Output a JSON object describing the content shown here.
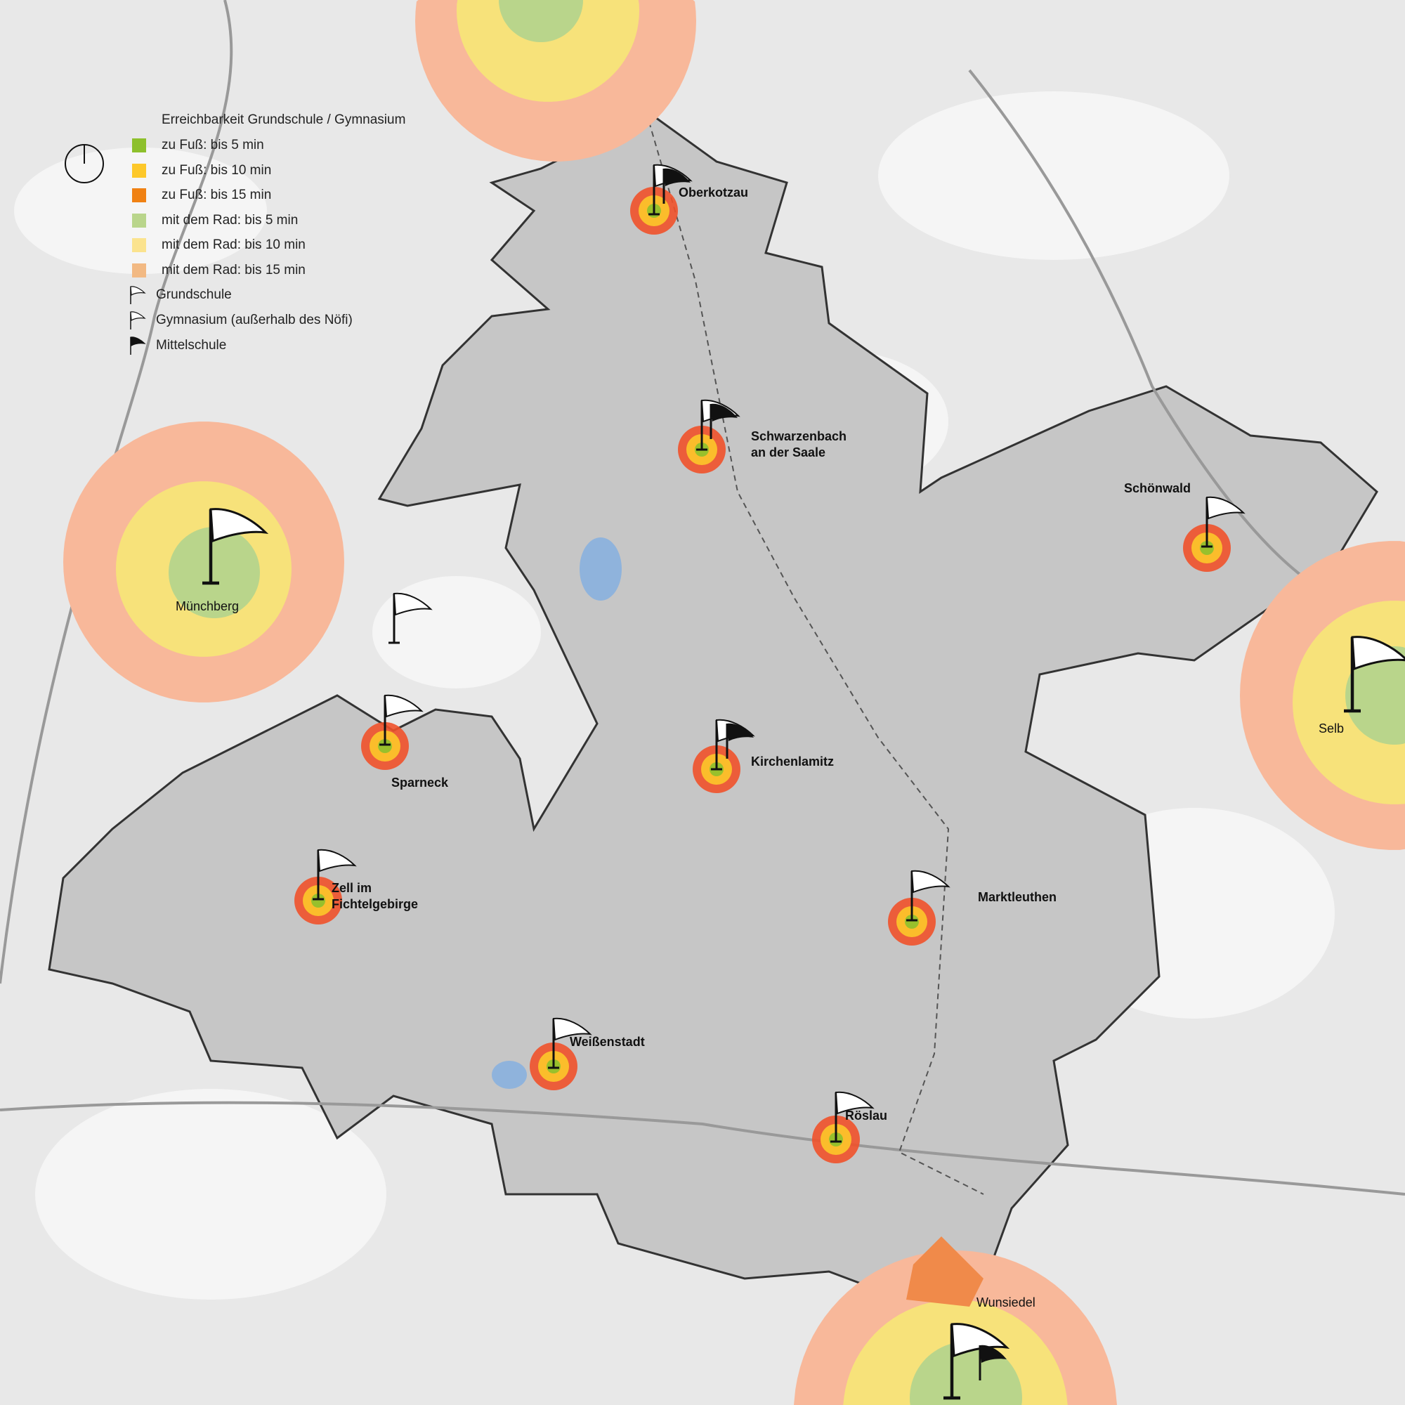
{
  "legend": {
    "title": "Erreichbarkeit Grundschule / Gymnasium",
    "clock_icon": "clock-icon",
    "items": [
      {
        "label": "zu Fuß: bis 5 min",
        "color": "#8dc02c"
      },
      {
        "label": "zu Fuß: bis 10 min",
        "color": "#fdc82a"
      },
      {
        "label": "zu Fuß: bis 15 min",
        "color": "#f08113"
      },
      {
        "label": "mit dem Rad: bis 5 min",
        "color": "#b9d58b"
      },
      {
        "label": "mit dem Rad: bis 10 min",
        "color": "#fbe38e"
      },
      {
        "label": "mit dem Rad: bis 15 min",
        "color": "#f2b983"
      }
    ],
    "symbols": [
      {
        "label": "Grundschule",
        "icon": "white-flag-icon"
      },
      {
        "label": "Gymnasium (außerhalb des Nöfi)",
        "icon": "large-white-flag-icon"
      },
      {
        "label": "Mittelschule",
        "icon": "black-flag-icon"
      }
    ]
  },
  "colors": {
    "walk_5": "#8dc02c",
    "walk_10": "#fdc82a",
    "walk_15": "#f0512a",
    "bike_5": "#b9d58b",
    "bike_10": "#f7e27a",
    "bike_15": "#f8b89a",
    "background": "#e6e6e6",
    "district": "#c4c4c4",
    "water": "#8fb3dc"
  },
  "places": {
    "oberkotzau": {
      "name": "Oberkotzau",
      "schools": [
        "Grundschule",
        "Mittelschule"
      ]
    },
    "schwarzenbach": {
      "name_line1": "Schwarzenbach",
      "name_line2": "an der Saale",
      "schools": [
        "Grundschule",
        "Mittelschule"
      ]
    },
    "schoenwald": {
      "name": "Schönwald",
      "schools": [
        "Grundschule"
      ]
    },
    "muenchberg": {
      "name": "Münchberg",
      "schools": [
        "Gymnasium"
      ]
    },
    "selb": {
      "name": "Selb",
      "schools": [
        "Gymnasium"
      ]
    },
    "sparneck": {
      "name": "Sparneck",
      "schools": [
        "Grundschule"
      ]
    },
    "kirchenlamitz": {
      "name": "Kirchenlamitz",
      "schools": [
        "Grundschule",
        "Mittelschule"
      ]
    },
    "zell": {
      "name_line1": "Zell im",
      "name_line2": "Fichtelgebirge",
      "schools": [
        "Grundschule"
      ]
    },
    "marktleuthen": {
      "name": "Marktleuthen",
      "schools": [
        "Grundschule"
      ]
    },
    "weissenstadt": {
      "name": "Weißenstadt",
      "schools": [
        "Grundschule"
      ]
    },
    "roeslau": {
      "name": "Röslau",
      "schools": [
        "Grundschule"
      ]
    },
    "wunsiedel": {
      "name": "Wunsiedel",
      "schools": [
        "Gymnasium",
        "Mittelschule"
      ]
    }
  }
}
